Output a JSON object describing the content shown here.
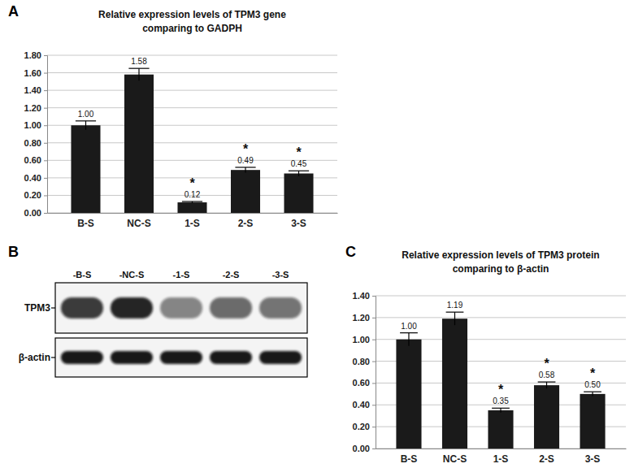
{
  "chart_data": [
    {
      "type": "bar",
      "panel": "A",
      "title": [
        "Relative expression levels of TPM3 gene",
        "comparing to GADPH"
      ],
      "categories": [
        "B-S",
        "NC-S",
        "1-S",
        "2-S",
        "3-S"
      ],
      "values": [
        1.0,
        1.58,
        0.12,
        0.49,
        0.45
      ],
      "value_labels": [
        "1.00",
        "1.58",
        "0.12",
        "0.49",
        "0.45"
      ],
      "errors": [
        0.05,
        0.07,
        0.01,
        0.03,
        0.03
      ],
      "significance": [
        null,
        null,
        "*",
        "*",
        "*"
      ],
      "color": "#1a1a1a",
      "ylim": [
        0,
        1.8
      ],
      "yticks": [
        {
          "value": 0,
          "label": "0.00"
        },
        {
          "value": 0.2,
          "label": "0.20"
        },
        {
          "value": 0.4,
          "label": "0.40"
        },
        {
          "value": 0.6,
          "label": "0.60"
        },
        {
          "value": 0.8,
          "label": "0.80"
        },
        {
          "value": 1.0,
          "label": "1.00"
        },
        {
          "value": 1.2,
          "label": "1.20"
        },
        {
          "value": 1.4,
          "label": "1.40"
        },
        {
          "value": 1.6,
          "label": "1.60"
        },
        {
          "value": 1.8,
          "label": "1.80"
        }
      ],
      "grid": true,
      "data_labels": true
    },
    {
      "type": "bar",
      "panel": "C",
      "title": [
        "Relative expression levels of TPM3 protein",
        "comparing to β-actin"
      ],
      "categories": [
        "B-S",
        "NC-S",
        "1-S",
        "2-S",
        "3-S"
      ],
      "values": [
        1.0,
        1.19,
        0.35,
        0.58,
        0.5
      ],
      "value_labels": [
        "1.00",
        "1.19",
        "0.35",
        "0.58",
        "0.50"
      ],
      "errors": [
        0.06,
        0.06,
        0.02,
        0.03,
        0.02
      ],
      "significance": [
        null,
        null,
        "*",
        "*",
        "*"
      ],
      "color": "#1a1a1a",
      "ylim": [
        0,
        1.4
      ],
      "yticks": [
        {
          "value": 0,
          "label": "0.00"
        },
        {
          "value": 0.2,
          "label": "0.20"
        },
        {
          "value": 0.4,
          "label": "0.40"
        },
        {
          "value": 0.6,
          "label": "0.60"
        },
        {
          "value": 0.8,
          "label": "0.80"
        },
        {
          "value": 1.0,
          "label": "1.00"
        },
        {
          "value": 1.2,
          "label": "1.20"
        },
        {
          "value": 1.4,
          "label": "1.40"
        }
      ],
      "grid": true,
      "data_labels": true
    }
  ],
  "blot": {
    "panel": "B",
    "lanes": [
      "-B-S",
      "-NC-S",
      "-1-S",
      "-2-S",
      "-3-S"
    ],
    "rows": [
      {
        "label": "TPM3"
      },
      {
        "label": "β-actin"
      }
    ]
  }
}
